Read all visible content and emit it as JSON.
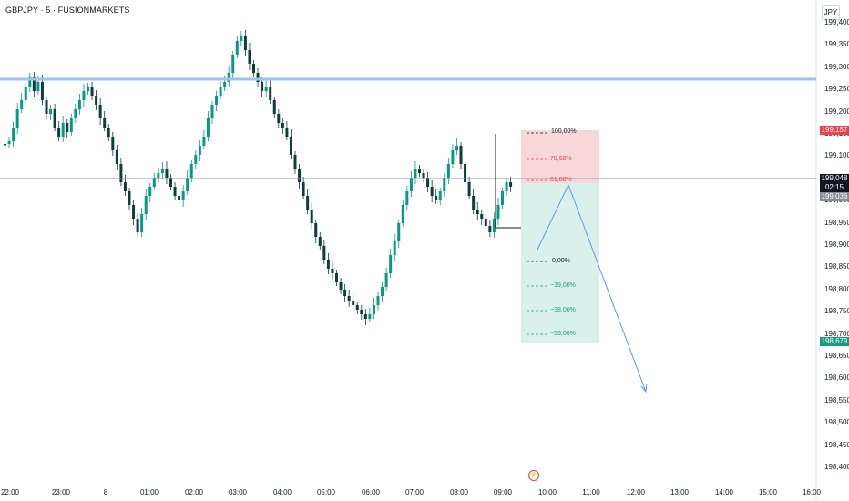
{
  "header": {
    "symbol": "GBPJPY · 5 · FUSIONMARKETS",
    "currency": "JPY"
  },
  "price_axis": [
    "199,400",
    "199,350",
    "199,300",
    "199,250",
    "199,200",
    "199,150",
    "199,100",
    "199,050",
    "199,000",
    "198,950",
    "198,900",
    "198,850",
    "198,800",
    "198,750",
    "198,700",
    "198,650",
    "198,600",
    "198,550",
    "198,500",
    "198,450",
    "198,400"
  ],
  "time_axis": [
    "22:00",
    "23:00",
    "8",
    "01:00",
    "02:00",
    "03:00",
    "04:00",
    "05:00",
    "06:00",
    "07:00",
    "08:00",
    "09:00",
    "10:00",
    "11:00",
    "12:00",
    "13:00",
    "14:00",
    "15:00",
    "16:00"
  ],
  "badges": {
    "stop": "199,157",
    "last_price": "199,048",
    "countdown": "02:15",
    "entry": "199,036",
    "target": "198,679"
  },
  "fib_levels": [
    "100,00%",
    "78,60%",
    "61,80%",
    "0,00%",
    "−19,00%",
    "−38,00%",
    "−56,00%"
  ],
  "colors": {
    "bull": "#089981",
    "bear": "#0f3d3a",
    "resistance": "#9cc3ef",
    "stop_zone": "#f7d0d3",
    "target_zone": "#d3efe7",
    "stop_badge": "#e7444e",
    "entry_badge": "#878b94",
    "target_badge": "#1a9b7c",
    "projection": "#5b9be0"
  },
  "icons": {
    "event": "flash-icon"
  }
}
